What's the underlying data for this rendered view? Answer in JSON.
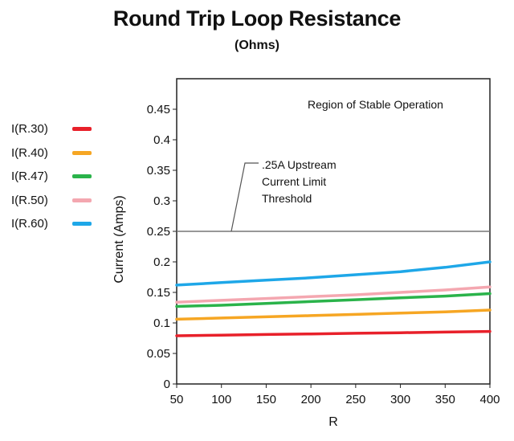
{
  "header": {
    "title": "Round Trip Loop Resistance",
    "subtitle": "(Ohms)"
  },
  "chart_data": {
    "type": "line",
    "xlabel": "R",
    "ylabel": "Current (Amps)",
    "xlim": [
      50,
      400
    ],
    "ylim": [
      0,
      0.5
    ],
    "x_ticks": [
      "50",
      "100",
      "150",
      "200",
      "250",
      "300",
      "350",
      "400"
    ],
    "y_ticks": [
      "0",
      "0.05",
      "0.1",
      "0.15",
      "0.2",
      "0.25",
      "0.3",
      "0.35",
      "0.4",
      "0.45"
    ],
    "grid": false,
    "legend_position": "left",
    "x": [
      50,
      100,
      150,
      200,
      250,
      300,
      350,
      400
    ],
    "series": [
      {
        "name": "I(R.30)",
        "color": "#e8202a",
        "values": [
          0.079,
          0.08,
          0.081,
          0.082,
          0.083,
          0.084,
          0.085,
          0.086
        ]
      },
      {
        "name": "I(R.40)",
        "color": "#f6a623",
        "values": [
          0.106,
          0.108,
          0.11,
          0.112,
          0.114,
          0.116,
          0.118,
          0.121
        ]
      },
      {
        "name": "I(R.47)",
        "color": "#2ab34a",
        "values": [
          0.127,
          0.129,
          0.132,
          0.135,
          0.138,
          0.141,
          0.144,
          0.148
        ]
      },
      {
        "name": "I(R.50)",
        "color": "#f4a7b0",
        "values": [
          0.134,
          0.137,
          0.14,
          0.143,
          0.146,
          0.15,
          0.154,
          0.159
        ]
      },
      {
        "name": "I(R.60)",
        "color": "#1ea7e8",
        "values": [
          0.162,
          0.166,
          0.17,
          0.174,
          0.179,
          0.184,
          0.191,
          0.2
        ]
      }
    ],
    "threshold": {
      "y": 0.25,
      "color": "#777777"
    },
    "annotations": {
      "region": "Region of Stable Operation",
      "threshold_lines": [
        ".25A Upstream",
        "Current Limit",
        "Threshold"
      ]
    }
  }
}
